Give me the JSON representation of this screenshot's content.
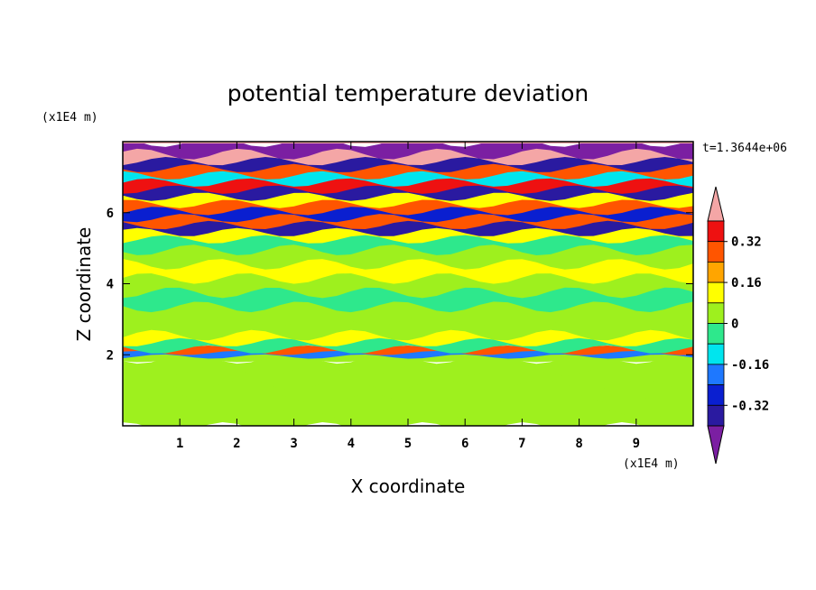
{
  "chart_data": {
    "type": "heatmap",
    "title": "potential temperature deviation",
    "xlabel": "X coordinate",
    "ylabel": "Z coordinate",
    "x_unit": "(x1E4 m)",
    "y_unit": "(x1E4 m)",
    "time_label": "t=1.3644e+06",
    "xlim": [
      0,
      10
    ],
    "ylim": [
      0,
      8
    ],
    "x_ticks": [
      "1",
      "2",
      "3",
      "4",
      "5",
      "6",
      "7",
      "8",
      "9"
    ],
    "y_ticks": [
      "2",
      "4",
      "6"
    ],
    "colorbar": {
      "labels": [
        "0.32",
        "0.16",
        "0",
        "-0.16",
        "-0.32"
      ],
      "levels": [
        -0.4,
        -0.32,
        -0.24,
        -0.16,
        -0.08,
        0,
        0.08,
        0.16,
        0.24,
        0.32,
        0.4
      ],
      "colors": [
        "#7b1fa2",
        "#2a1aa0",
        "#0a1fd0",
        "#1e78ff",
        "#00e5ee",
        "#2ee88c",
        "#9ef01e",
        "#ffff00",
        "#ffa500",
        "#ff5500",
        "#ee1111",
        "#f4a6a6"
      ]
    },
    "bands": [
      {
        "z": 0.0,
        "v": 0.05
      },
      {
        "z": 0.4,
        "v": 0.07
      },
      {
        "z": 0.8,
        "v": 0.04
      },
      {
        "z": 1.2,
        "v": 0.06
      },
      {
        "z": 1.6,
        "v": 0.03
      },
      {
        "z": 1.9,
        "v": 0.02
      },
      {
        "z": 2.0,
        "v": -0.2
      },
      {
        "z": 2.1,
        "v": 0.25
      },
      {
        "z": 2.2,
        "v": -0.05
      },
      {
        "z": 2.4,
        "v": 0.12
      },
      {
        "z": 2.6,
        "v": 0.02
      },
      {
        "z": 3.0,
        "v": 0.05
      },
      {
        "z": 3.4,
        "v": -0.02
      },
      {
        "z": 3.8,
        "v": 0.03
      },
      {
        "z": 4.2,
        "v": 0.1
      },
      {
        "z": 4.6,
        "v": 0.01
      },
      {
        "z": 5.0,
        "v": -0.06
      },
      {
        "z": 5.3,
        "v": 0.12
      },
      {
        "z": 5.5,
        "v": -0.35
      },
      {
        "z": 5.7,
        "v": 0.25
      },
      {
        "z": 5.9,
        "v": -0.3
      },
      {
        "z": 6.1,
        "v": 0.3
      },
      {
        "z": 6.3,
        "v": 0.1
      },
      {
        "z": 6.5,
        "v": -0.36
      },
      {
        "z": 6.7,
        "v": 0.36
      },
      {
        "z": 6.9,
        "v": -0.12
      },
      {
        "z": 7.1,
        "v": 0.28
      },
      {
        "z": 7.3,
        "v": -0.38
      },
      {
        "z": 7.5,
        "v": 0.45
      },
      {
        "z": 7.7,
        "v": -0.45
      },
      {
        "z": 8.0,
        "v": 0.42
      }
    ]
  }
}
